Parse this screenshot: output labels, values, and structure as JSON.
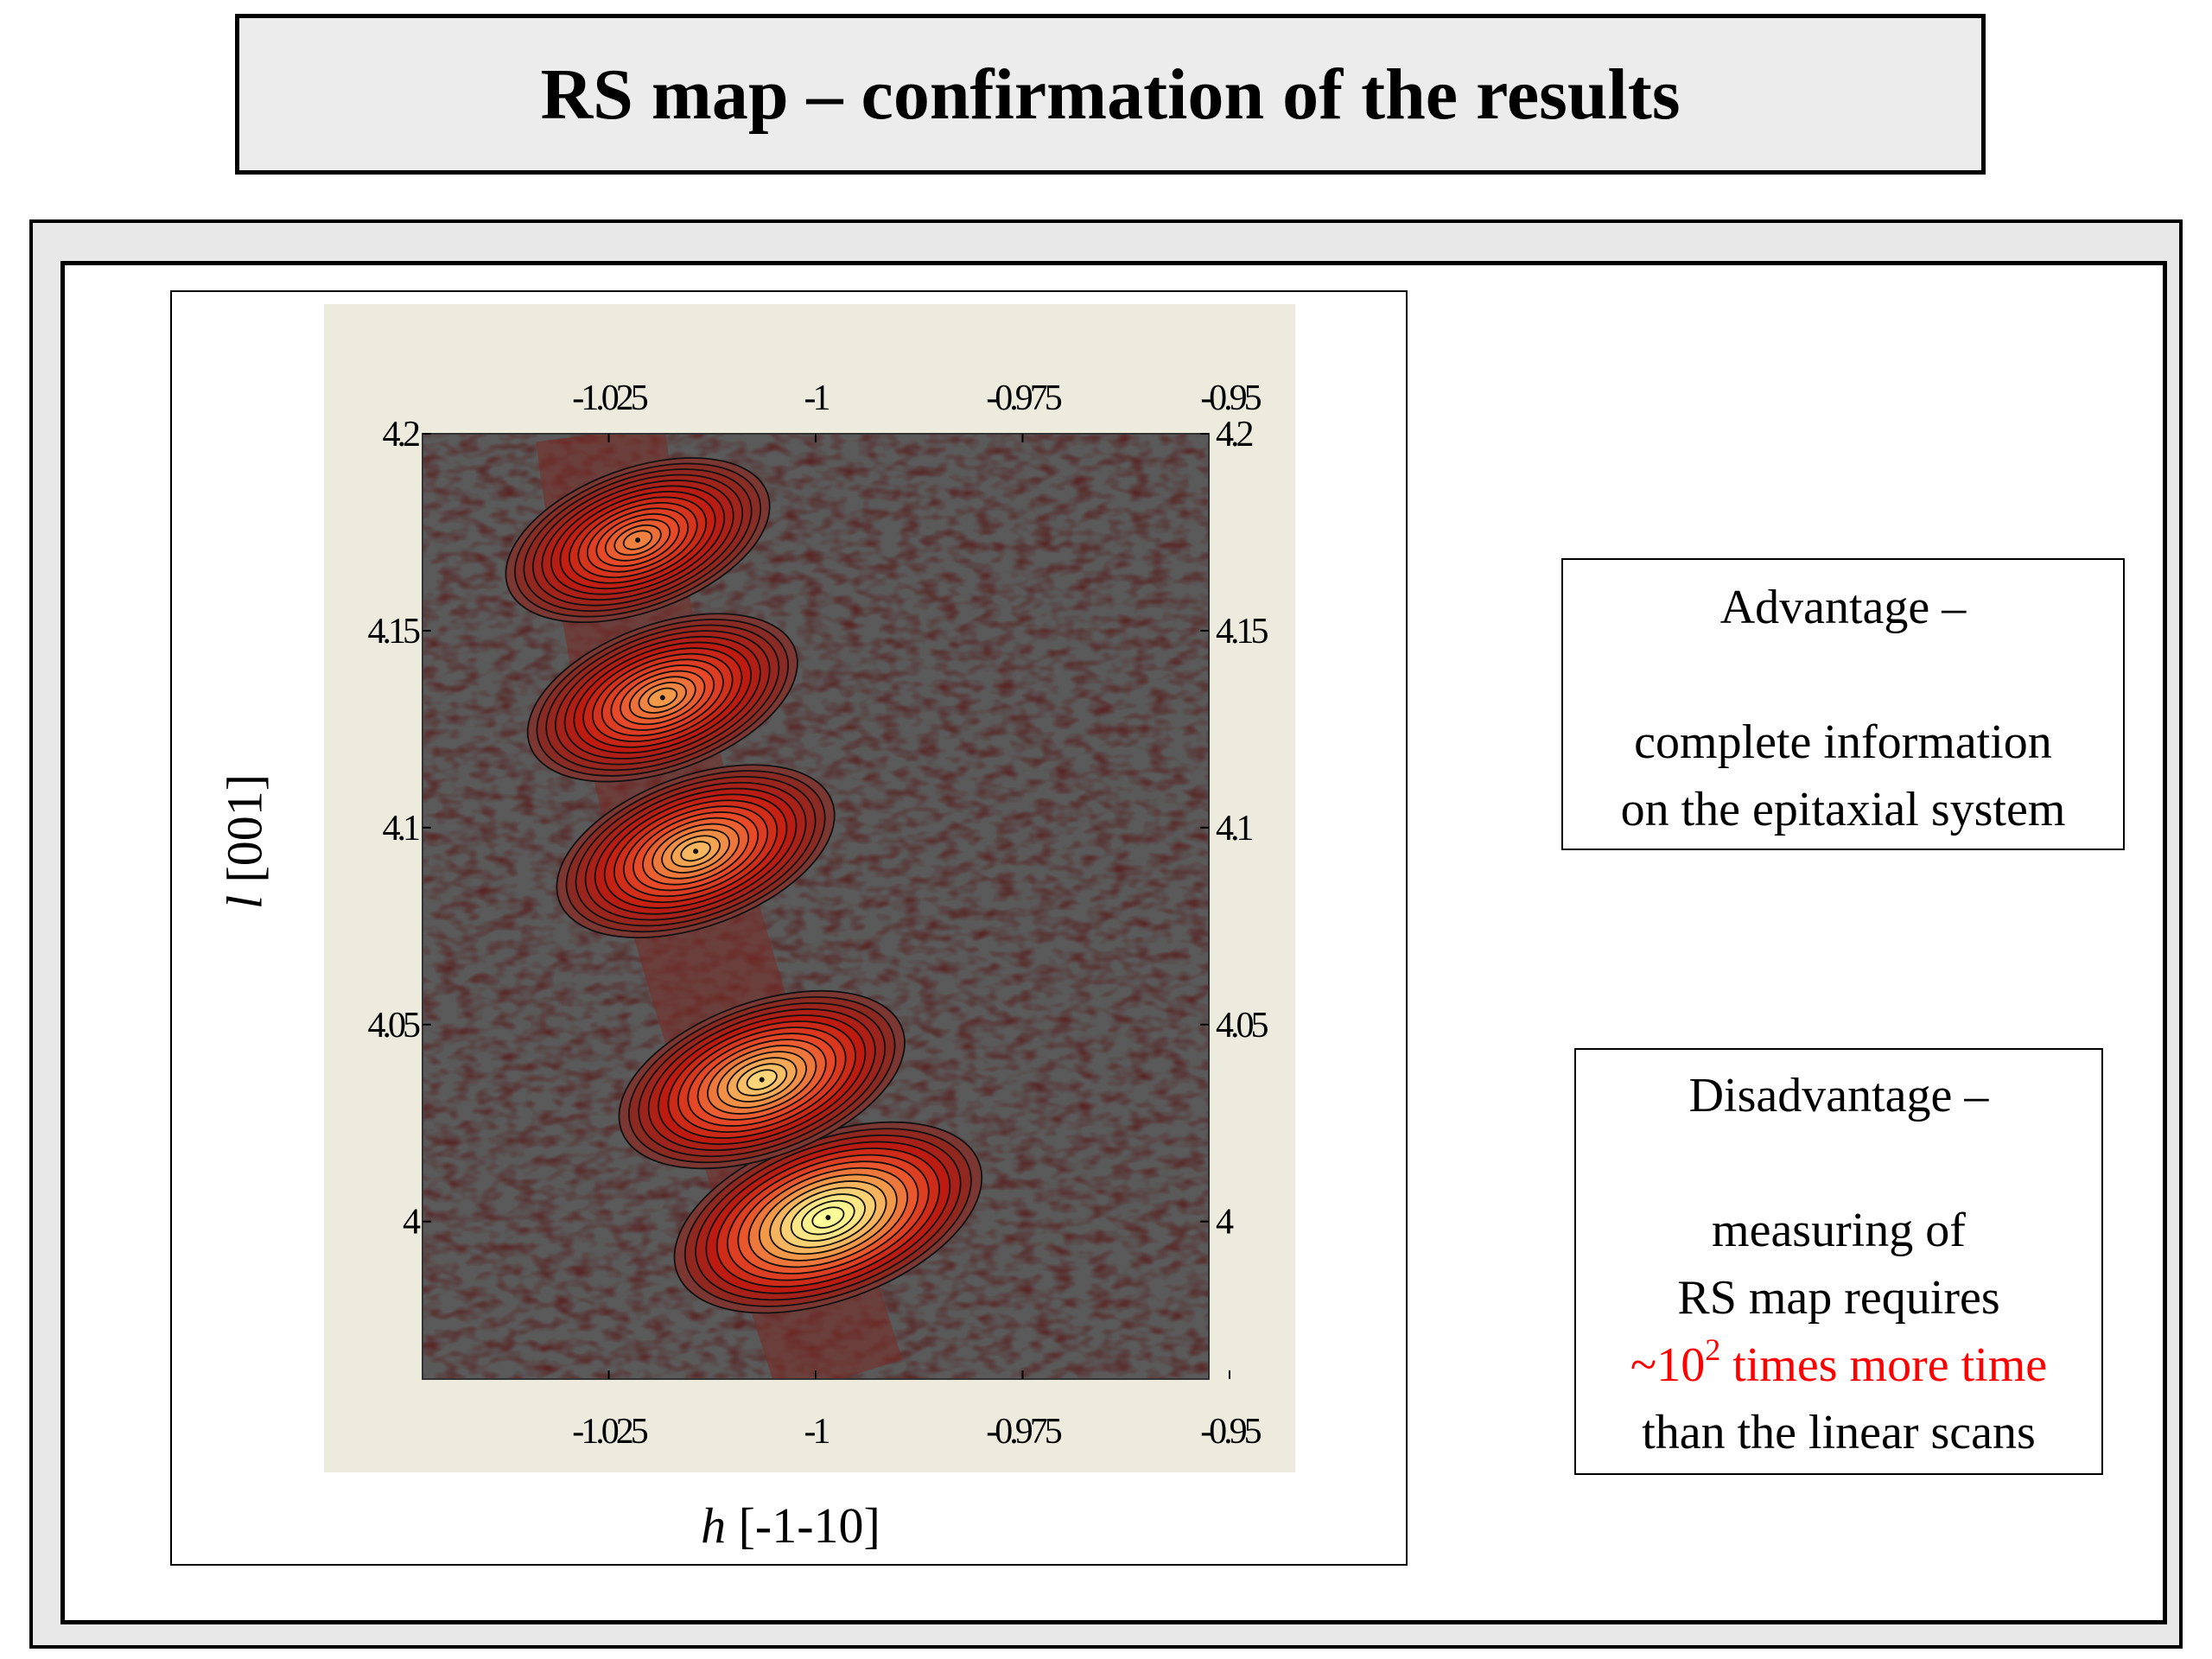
{
  "title": "RS map – confirmation of the results",
  "advantage": {
    "heading": "Advantage –",
    "line1": "complete information",
    "line2": "on the epitaxial system"
  },
  "disadvantage": {
    "heading": "Disadvantage –",
    "line1": "measuring of",
    "line2": "RS map requires",
    "highlight_prefix": "~10",
    "highlight_exponent": "2",
    "highlight_suffix": " times more time",
    "line4": "than the linear scans",
    "highlight_color": "#ff0000"
  },
  "chart_data": {
    "type": "heatmap",
    "subtype": "contour",
    "xlabel_var": "h",
    "xlabel_rest": " [-1-10]",
    "ylabel_var": "l",
    "ylabel_rest": " [001]",
    "xlim": [
      -1.0475,
      -0.9525
    ],
    "ylim": [
      3.96,
      4.2
    ],
    "xticks": [
      -1.025,
      -1,
      -0.975,
      -0.95
    ],
    "xtick_labels": [
      "-1.025",
      "-1",
      "-0.975",
      "-0.95"
    ],
    "yticks": [
      4,
      4.05,
      4.1,
      4.15,
      4.2
    ],
    "ytick_labels": [
      "4",
      "4.05",
      "4.1",
      "4.15",
      "4.2"
    ],
    "tick_sides": [
      "left",
      "right",
      "top",
      "bottom"
    ],
    "colormap": [
      "#5a5a5a",
      "#8a2a22",
      "#c01a10",
      "#e84a28",
      "#f39a4a",
      "#fde080",
      "#ffff99"
    ],
    "peaks": [
      {
        "h": -0.9985,
        "l": 4.001,
        "intensity": 1.0
      },
      {
        "h": -1.0065,
        "l": 4.036,
        "intensity": 0.78
      },
      {
        "h": -1.0145,
        "l": 4.094,
        "intensity": 0.7
      },
      {
        "h": -1.0185,
        "l": 4.133,
        "intensity": 0.62
      },
      {
        "h": -1.0215,
        "l": 4.173,
        "intensity": 0.56
      }
    ]
  }
}
